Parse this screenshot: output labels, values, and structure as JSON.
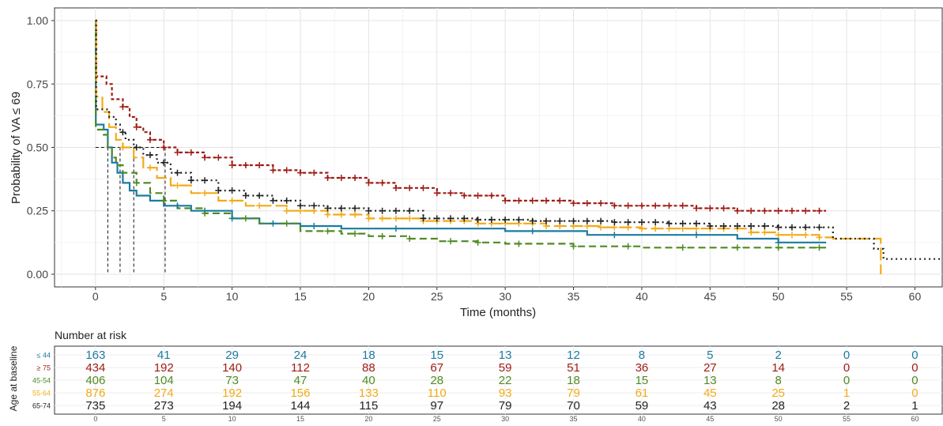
{
  "chart_data": [
    {
      "type": "line",
      "subtype": "kaplan-meier",
      "title": "",
      "xlabel": "Time (months)",
      "ylabel": "Probability of VA ≤ 69",
      "xlim": [
        -3,
        62
      ],
      "ylim": [
        -0.05,
        1.05
      ],
      "x_ticks": [
        0,
        5,
        10,
        15,
        20,
        25,
        30,
        35,
        40,
        45,
        50,
        55,
        60
      ],
      "y_ticks": [
        0.0,
        0.25,
        0.5,
        0.75,
        1.0
      ],
      "y_tick_labels": [
        "0.00",
        "0.25",
        "0.50",
        "0.75",
        "1.00"
      ],
      "grid": true,
      "legend": "none",
      "median_reference": {
        "y": 0.5,
        "x": [
          0.9,
          1.8,
          2.8,
          5.1
        ]
      },
      "series": [
        {
          "label": "≤ 44",
          "color": "#1a7ba3",
          "dash": "solid",
          "steps": [
            [
              0,
              1.0
            ],
            [
              0.02,
              0.59
            ],
            [
              0.6,
              0.57
            ],
            [
              0.9,
              0.5
            ],
            [
              1.2,
              0.44
            ],
            [
              1.6,
              0.4
            ],
            [
              2.0,
              0.36
            ],
            [
              2.5,
              0.33
            ],
            [
              3.0,
              0.31
            ],
            [
              4.0,
              0.29
            ],
            [
              5.0,
              0.27
            ],
            [
              7.0,
              0.25
            ],
            [
              10.0,
              0.22
            ],
            [
              12.0,
              0.2
            ],
            [
              15.0,
              0.19
            ],
            [
              18.0,
              0.18
            ],
            [
              30.0,
              0.17
            ],
            [
              36.0,
              0.155
            ],
            [
              47.0,
              0.14
            ],
            [
              50.0,
              0.125
            ],
            [
              53.5,
              0.125
            ]
          ],
          "censor_x": [
            6,
            8,
            10,
            13,
            16,
            22,
            32,
            38,
            44,
            50
          ]
        },
        {
          "label": "≥ 75",
          "color": "#9e1b13",
          "dash": "4,3",
          "steps": [
            [
              0,
              1.0
            ],
            [
              0.05,
              0.78
            ],
            [
              0.8,
              0.75
            ],
            [
              1.2,
              0.69
            ],
            [
              2.0,
              0.66
            ],
            [
              2.5,
              0.62
            ],
            [
              3.0,
              0.58
            ],
            [
              3.5,
              0.56
            ],
            [
              4.0,
              0.53
            ],
            [
              5.0,
              0.5
            ],
            [
              6.0,
              0.48
            ],
            [
              8.0,
              0.46
            ],
            [
              10.0,
              0.43
            ],
            [
              13.0,
              0.41
            ],
            [
              15.0,
              0.4
            ],
            [
              17.0,
              0.38
            ],
            [
              20.0,
              0.36
            ],
            [
              22.0,
              0.34
            ],
            [
              25.0,
              0.32
            ],
            [
              27.0,
              0.31
            ],
            [
              30.0,
              0.29
            ],
            [
              35.0,
              0.28
            ],
            [
              38.0,
              0.27
            ],
            [
              44.0,
              0.26
            ],
            [
              47.0,
              0.25
            ],
            [
              53.5,
              0.25
            ]
          ],
          "censor_x": [
            2,
            3,
            4,
            5,
            6,
            7,
            8,
            9,
            10,
            11,
            12,
            13,
            14,
            15,
            16,
            17,
            18,
            19,
            20,
            21,
            22,
            23,
            24,
            25,
            26,
            27,
            28,
            29,
            30,
            31,
            32,
            33,
            34,
            35,
            36,
            37,
            38,
            39,
            40,
            41,
            42,
            43,
            44,
            45,
            46,
            47,
            48,
            49,
            50,
            51,
            52,
            53
          ]
        },
        {
          "label": "45-54",
          "color": "#4f8a23",
          "dash": "9,5",
          "steps": [
            [
              0,
              1.0
            ],
            [
              0.02,
              0.57
            ],
            [
              0.6,
              0.55
            ],
            [
              0.9,
              0.5
            ],
            [
              1.2,
              0.46
            ],
            [
              1.5,
              0.43
            ],
            [
              2.0,
              0.4
            ],
            [
              3.0,
              0.36
            ],
            [
              4.0,
              0.32
            ],
            [
              5.0,
              0.29
            ],
            [
              6.0,
              0.26
            ],
            [
              8.0,
              0.24
            ],
            [
              10.0,
              0.22
            ],
            [
              12.0,
              0.2
            ],
            [
              15.0,
              0.17
            ],
            [
              18.0,
              0.16
            ],
            [
              20.0,
              0.15
            ],
            [
              23.0,
              0.14
            ],
            [
              25.0,
              0.13
            ],
            [
              28.0,
              0.125
            ],
            [
              30.0,
              0.12
            ],
            [
              35.0,
              0.11
            ],
            [
              40.0,
              0.105
            ],
            [
              53.5,
              0.105
            ]
          ],
          "censor_x": [
            3,
            5,
            8,
            11,
            14,
            17,
            19,
            21,
            23,
            26,
            28,
            31,
            35,
            39,
            43,
            47,
            50,
            53
          ]
        },
        {
          "label": "55-64",
          "color": "#f2aa17",
          "dash": "16,5",
          "steps": [
            [
              0,
              1.0
            ],
            [
              0.05,
              0.7
            ],
            [
              0.5,
              0.64
            ],
            [
              1.0,
              0.58
            ],
            [
              1.5,
              0.53
            ],
            [
              2.0,
              0.5
            ],
            [
              2.8,
              0.46
            ],
            [
              3.5,
              0.42
            ],
            [
              4.5,
              0.38
            ],
            [
              5.5,
              0.35
            ],
            [
              7.0,
              0.32
            ],
            [
              9.0,
              0.29
            ],
            [
              11.0,
              0.27
            ],
            [
              14.0,
              0.25
            ],
            [
              17.0,
              0.235
            ],
            [
              20.0,
              0.22
            ],
            [
              24.0,
              0.21
            ],
            [
              28.0,
              0.2
            ],
            [
              33.0,
              0.19
            ],
            [
              37.0,
              0.185
            ],
            [
              40.0,
              0.18
            ],
            [
              48.0,
              0.165
            ],
            [
              50.0,
              0.155
            ],
            [
              53.0,
              0.145
            ],
            [
              54.0,
              0.14
            ],
            [
              57.5,
              0.0
            ]
          ],
          "censor_x": [
            2,
            4,
            6,
            8,
            10,
            12,
            14,
            15,
            16,
            17,
            18,
            19,
            20,
            21,
            22,
            23,
            24,
            25,
            26,
            27,
            28,
            29,
            30,
            31,
            32,
            33,
            34,
            35,
            36,
            37,
            38,
            39,
            40,
            41,
            42,
            43,
            44,
            45,
            46,
            47,
            48,
            49,
            50,
            51,
            52,
            53
          ]
        },
        {
          "label": "65-74",
          "color": "#222222",
          "dash": "2,4",
          "steps": [
            [
              0,
              1.0
            ],
            [
              0.05,
              0.65
            ],
            [
              1.0,
              0.62
            ],
            [
              1.5,
              0.59
            ],
            [
              1.8,
              0.56
            ],
            [
              2.2,
              0.53
            ],
            [
              2.8,
              0.5
            ],
            [
              3.5,
              0.47
            ],
            [
              4.5,
              0.44
            ],
            [
              5.5,
              0.4
            ],
            [
              7.0,
              0.37
            ],
            [
              9.0,
              0.33
            ],
            [
              11.0,
              0.31
            ],
            [
              13.0,
              0.29
            ],
            [
              15.0,
              0.27
            ],
            [
              17.0,
              0.26
            ],
            [
              20.0,
              0.25
            ],
            [
              24.0,
              0.22
            ],
            [
              28.0,
              0.215
            ],
            [
              32.0,
              0.21
            ],
            [
              38.0,
              0.205
            ],
            [
              42.0,
              0.2
            ],
            [
              45.0,
              0.19
            ],
            [
              50.0,
              0.185
            ],
            [
              53.0,
              0.185
            ],
            [
              54.0,
              0.14
            ],
            [
              57.0,
              0.1
            ],
            [
              57.7,
              0.06
            ],
            [
              62,
              0.06
            ]
          ],
          "censor_x": [
            2,
            3,
            4,
            5,
            6,
            7,
            8,
            9,
            10,
            11,
            12,
            13,
            14,
            15,
            16,
            17,
            18,
            19,
            20,
            21,
            22,
            23,
            24,
            25,
            26,
            27,
            28,
            29,
            30,
            31,
            32,
            33,
            34,
            35,
            36,
            37,
            38,
            39,
            40,
            41,
            42,
            43,
            44,
            45,
            46,
            47,
            48,
            49,
            50,
            51,
            52,
            53
          ]
        }
      ]
    },
    {
      "type": "table",
      "title": "Number at risk",
      "ylabel": "Age at baseline",
      "columns": [
        0,
        5,
        10,
        15,
        20,
        25,
        30,
        35,
        40,
        45,
        50,
        55,
        60
      ],
      "rows": [
        {
          "label": "≤ 44",
          "color": "#1a7ba3",
          "values": [
            163,
            41,
            29,
            24,
            18,
            15,
            13,
            12,
            8,
            5,
            2,
            0,
            0
          ]
        },
        {
          "label": "≥ 75",
          "color": "#9e1b13",
          "values": [
            434,
            192,
            140,
            112,
            88,
            67,
            59,
            51,
            36,
            27,
            14,
            0,
            0
          ]
        },
        {
          "label": "45-54",
          "color": "#4f8a23",
          "values": [
            406,
            104,
            73,
            47,
            40,
            28,
            22,
            18,
            15,
            13,
            8,
            0,
            0
          ]
        },
        {
          "label": "55-64",
          "color": "#f2aa17",
          "values": [
            876,
            274,
            192,
            156,
            133,
            110,
            93,
            79,
            61,
            45,
            25,
            1,
            0
          ]
        },
        {
          "label": "65-74",
          "color": "#222222",
          "values": [
            735,
            273,
            194,
            144,
            115,
            97,
            79,
            70,
            59,
            43,
            28,
            2,
            1
          ]
        }
      ]
    }
  ]
}
